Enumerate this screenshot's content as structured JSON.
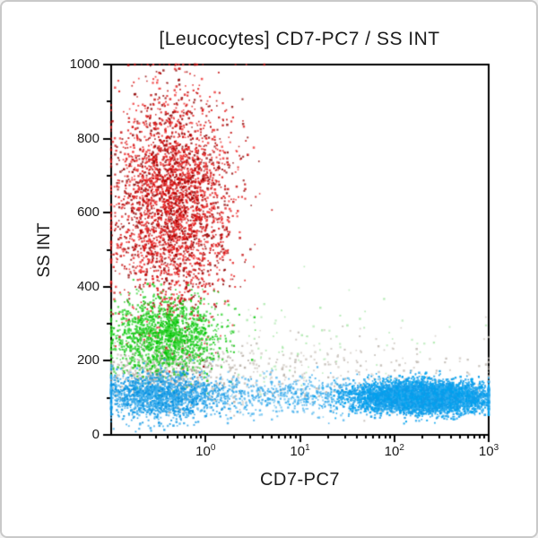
{
  "chart_data": {
    "type": "scatter",
    "title": "[Leucocytes] CD7-PC7 / SS INT",
    "xlabel": "CD7-PC7",
    "ylabel": "SS INT",
    "x_scale": "log10",
    "x_range_log10": [
      -1,
      3
    ],
    "y_range": [
      0,
      1000
    ],
    "x_major_ticks": [
      {
        "base": "10",
        "exp": "0",
        "log10": 0
      },
      {
        "base": "10",
        "exp": "1",
        "log10": 1
      },
      {
        "base": "10",
        "exp": "2",
        "log10": 2
      },
      {
        "base": "10",
        "exp": "3",
        "log10": 3
      }
    ],
    "y_major_ticks": [
      0,
      200,
      400,
      600,
      800,
      1000
    ],
    "y_minor_step": 100,
    "grid": "off",
    "legend": "none",
    "axis_color": "#000000",
    "background": "#ffffff",
    "clusters": [
      {
        "name": "gray-population-mid-band",
        "n": 650,
        "logx_mean": -0.4,
        "logx_sd": 0.36,
        "y_mean": 168,
        "y_sd": 42,
        "alpha": 0.75,
        "colors": [
          "#b4aba2",
          "#c3bbb2",
          "#a79d92"
        ]
      },
      {
        "name": "gray-population-scattered-wide",
        "n": 340,
        "logx_mean": 1.3,
        "logx_sd": 1.1,
        "y_mean": 165,
        "y_sd": 55,
        "alpha": 0.7,
        "colors": [
          "#c0b8af",
          "#b1a89f",
          "#cdc6be"
        ]
      },
      {
        "name": "red-population-high-ss",
        "n": 3200,
        "logx_mean": -0.36,
        "logx_sd": 0.31,
        "y_mean": 625,
        "y_sd": 150,
        "alpha": 0.8,
        "colors": [
          "#e01010",
          "#c00000",
          "#f03030",
          "#8f0000"
        ]
      },
      {
        "name": "green-population-mid-ss",
        "n": 1500,
        "logx_mean": -0.42,
        "logx_sd": 0.29,
        "y_mean": 268,
        "y_sd": 50,
        "alpha": 0.8,
        "colors": [
          "#22cc22",
          "#00c400",
          "#3fd83f"
        ]
      },
      {
        "name": "green-population-sparse-right",
        "n": 90,
        "logx_mean": 0.9,
        "logx_sd": 0.7,
        "y_mean": 255,
        "y_sd": 70,
        "alpha": 0.55,
        "colors": [
          "#7fdc7f",
          "#9ae29a"
        ]
      },
      {
        "name": "blue-population-low-ss-left",
        "n": 1600,
        "logx_mean": -0.5,
        "logx_sd": 0.34,
        "y_mean": 104,
        "y_sd": 30,
        "alpha": 0.8,
        "colors": [
          "#1b9de8",
          "#0090e0",
          "#45b1ee"
        ]
      },
      {
        "name": "blue-population-low-ss-bridge",
        "n": 550,
        "logx_mean": 0.85,
        "logx_sd": 0.55,
        "y_mean": 106,
        "y_sd": 26,
        "alpha": 0.7,
        "colors": [
          "#1b9de8",
          "#35a9ec",
          "#5dbcf0"
        ]
      },
      {
        "name": "blue-population-cd7-positive-dense",
        "n": 5200,
        "logx_mean": 2.3,
        "logx_sd": 0.37,
        "y_mean": 102,
        "y_sd": 21,
        "alpha": 0.9,
        "colors": [
          "#129ae8",
          "#00a2ee",
          "#2fabee"
        ]
      }
    ]
  }
}
